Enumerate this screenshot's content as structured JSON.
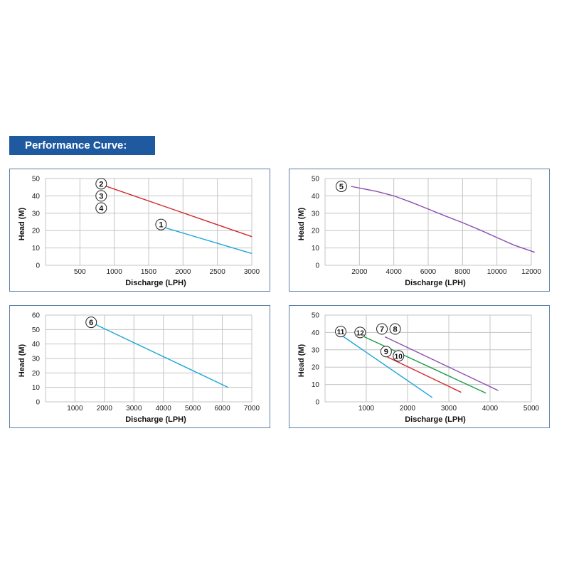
{
  "banner": {
    "title": "Performance Curve:"
  },
  "chart_data": [
    {
      "type": "line",
      "xlabel": "Discharge (LPH)",
      "ylabel": "Head (M)",
      "xlim": [
        0,
        3000
      ],
      "ylim": [
        0,
        50
      ],
      "xticks": [
        500,
        1000,
        1500,
        2000,
        2500,
        3000
      ],
      "yticks": [
        0,
        10,
        20,
        30,
        40,
        50
      ],
      "grid": true,
      "series": [
        {
          "name": "2",
          "color": "#d2262a",
          "points": [
            [
              850,
              46
            ],
            [
              3000,
              16.5
            ]
          ]
        },
        {
          "name": "1",
          "color": "#1aa6d8",
          "points": [
            [
              1750,
              21.5
            ],
            [
              3000,
              6.8
            ]
          ]
        }
      ],
      "markers": [
        {
          "label": "2",
          "x": 810,
          "y": 47
        },
        {
          "label": "3",
          "x": 810,
          "y": 40
        },
        {
          "label": "4",
          "x": 810,
          "y": 33
        },
        {
          "label": "1",
          "x": 1680,
          "y": 23.5
        }
      ]
    },
    {
      "type": "line",
      "xlabel": "Discharge (LPH)",
      "ylabel": "Head (M)",
      "xlim": [
        0,
        12000
      ],
      "ylim": [
        0,
        50
      ],
      "xticks": [
        2000,
        4000,
        6000,
        8000,
        10000,
        12000
      ],
      "yticks": [
        0,
        10,
        20,
        30,
        40,
        50
      ],
      "grid": true,
      "series": [
        {
          "name": "5",
          "color": "#8a4fb0",
          "points": [
            [
              1500,
              45.5
            ],
            [
              3000,
              42.6
            ],
            [
              4000,
              40
            ],
            [
              5000,
              36.4
            ],
            [
              6000,
              32.4
            ],
            [
              7000,
              28.4
            ],
            [
              8000,
              24.6
            ],
            [
              9000,
              20.4
            ],
            [
              10000,
              16
            ],
            [
              11000,
              11.6
            ],
            [
              12200,
              7.5
            ]
          ]
        }
      ],
      "markers": [
        {
          "label": "5",
          "x": 950,
          "y": 45.5
        }
      ]
    },
    {
      "type": "line",
      "ylabel": "Head (M)",
      "xlabel": "Discharge (LPH)",
      "xlim": [
        0,
        7000
      ],
      "ylim": [
        0,
        60
      ],
      "xticks": [
        1000,
        2000,
        3000,
        4000,
        5000,
        6000,
        7000
      ],
      "yticks": [
        0,
        10,
        20,
        30,
        40,
        50,
        60
      ],
      "grid": true,
      "series": [
        {
          "name": "6",
          "color": "#1aa6d8",
          "points": [
            [
              1700,
              53.5
            ],
            [
              6200,
              10
            ]
          ]
        }
      ],
      "markers": [
        {
          "label": "6",
          "x": 1550,
          "y": 55
        }
      ]
    },
    {
      "type": "line",
      "ylabel": "Head (M)",
      "xlabel": "Discharge (LPH)",
      "xlim": [
        0,
        5000
      ],
      "ylim": [
        0,
        50
      ],
      "xticks": [
        1000,
        2000,
        3000,
        4000,
        5000
      ],
      "yticks": [
        0,
        10,
        20,
        30,
        40,
        50
      ],
      "grid": true,
      "series": [
        {
          "name": "7/8",
          "color": "#8a4fb0",
          "points": [
            [
              1450,
              37.5
            ],
            [
              4200,
              6.5
            ]
          ]
        },
        {
          "name": "12",
          "color": "#1a9a4a",
          "points": [
            [
              950,
              37.5
            ],
            [
              3900,
              5
            ]
          ]
        },
        {
          "name": "9/10",
          "color": "#d2262a",
          "points": [
            [
              1500,
              26
            ],
            [
              3300,
              5.5
            ]
          ]
        },
        {
          "name": "11",
          "color": "#1aa6d8",
          "points": [
            [
              450,
              37.5
            ],
            [
              2600,
              2.5
            ]
          ]
        }
      ],
      "markers": [
        {
          "label": "7",
          "x": 1380,
          "y": 42
        },
        {
          "label": "8",
          "x": 1700,
          "y": 42
        },
        {
          "label": "11",
          "x": 380,
          "y": 40.5
        },
        {
          "label": "12",
          "x": 850,
          "y": 40
        },
        {
          "label": "9",
          "x": 1480,
          "y": 29
        },
        {
          "label": "10",
          "x": 1780,
          "y": 26.5
        }
      ]
    }
  ]
}
